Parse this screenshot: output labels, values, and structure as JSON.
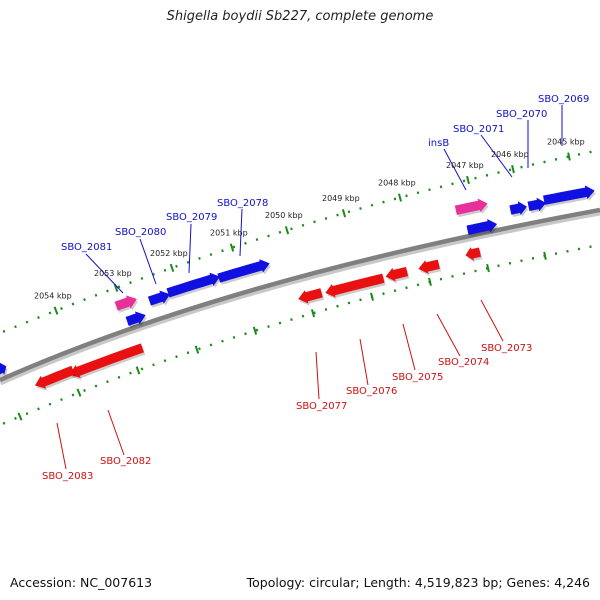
{
  "title": "Shigella boydii Sb227, complete genome",
  "accession": "Accession: NC_007613",
  "summary": "Topology: circular; Length: 4,519,823 bp; Genes: 4,246",
  "colors": {
    "forward_gene": "#1010e0",
    "reverse_gene": "#e81010",
    "mobile_element": "#e8309a",
    "backbone": "#808080",
    "ticks": "#1a8a1a",
    "label_plus": "#1010c8",
    "label_minus": "#d01010"
  },
  "kbp_ticks": [
    {
      "label": "2045 kbp"
    },
    {
      "label": "2046 kbp"
    },
    {
      "label": "2047 kbp"
    },
    {
      "label": "2048 kbp"
    },
    {
      "label": "2049 kbp"
    },
    {
      "label": "2050 kbp"
    },
    {
      "label": "2051 kbp"
    },
    {
      "label": "2052 kbp"
    },
    {
      "label": "2053 kbp"
    },
    {
      "label": "2054 kbp"
    }
  ],
  "genes_forward": [
    {
      "label": "SBO_2069"
    },
    {
      "label": "SBO_2070"
    },
    {
      "label": "SBO_2071"
    },
    {
      "label": "insB"
    },
    {
      "label": "SBO_2078"
    },
    {
      "label": "SBO_2079"
    },
    {
      "label": "SBO_2080"
    },
    {
      "label": "SBO_2081"
    }
  ],
  "genes_reverse": [
    {
      "label": "SBO_2073"
    },
    {
      "label": "SBO_2074"
    },
    {
      "label": "SBO_2075"
    },
    {
      "label": "SBO_2076"
    },
    {
      "label": "SBO_2077"
    },
    {
      "label": "SBO_2082"
    },
    {
      "label": "SBO_2083"
    }
  ]
}
